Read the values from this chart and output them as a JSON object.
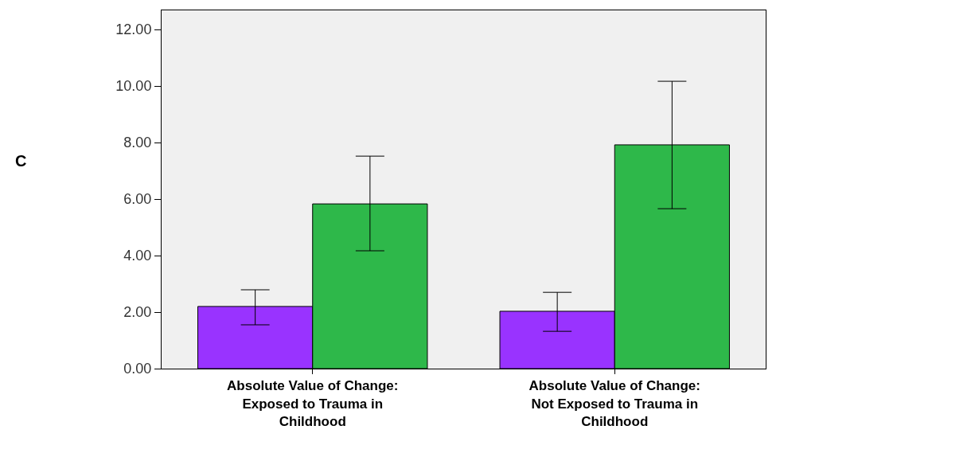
{
  "chart_data": {
    "type": "bar",
    "annotations": [
      "C"
    ],
    "categories": [
      "Absolute Value of Change: Exposed to Trauma in Childhood",
      "Absolute Value of Change: Not Exposed to Trauma in Childhood"
    ],
    "series": [
      {
        "color": "#9933ff",
        "values": [
          2.2,
          2.03
        ],
        "errors": [
          [
            1.55,
            2.79
          ],
          [
            1.32,
            2.7
          ]
        ]
      },
      {
        "color": "#2eb84a",
        "values": [
          5.83,
          7.92
        ],
        "errors": [
          [
            4.17,
            7.52
          ],
          [
            5.66,
            10.17
          ]
        ]
      }
    ],
    "ylim": [
      0,
      12.68
    ],
    "yticks": [
      {
        "value": 0,
        "label": "0.00"
      },
      {
        "value": 2,
        "label": "2.00"
      },
      {
        "value": 4,
        "label": "4.00"
      },
      {
        "value": 6,
        "label": "6.00"
      },
      {
        "value": 8,
        "label": "8.00"
      },
      {
        "value": 10,
        "label": "10.00"
      },
      {
        "value": 12,
        "label": "12.00"
      }
    ],
    "grid": false
  }
}
